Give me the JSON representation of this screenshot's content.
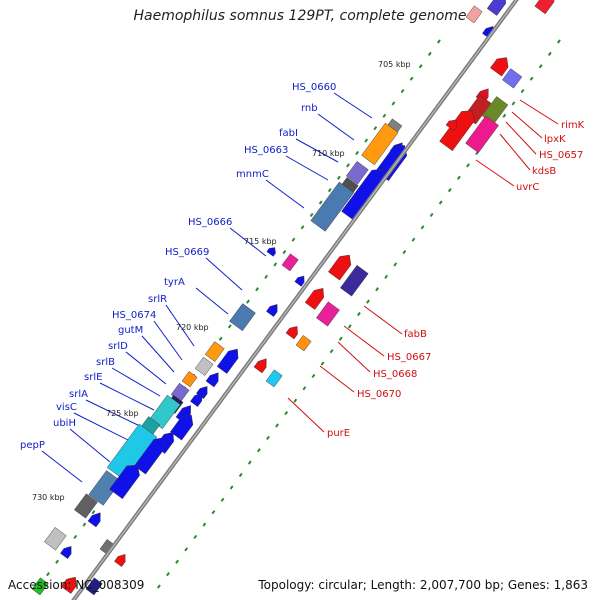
{
  "title": "Haemophilus somnus 129PT, complete genome",
  "footer": {
    "accession": "Accession: NC_008309",
    "topology": "Topology: circular; Length: 2,007,700 bp; Genes: 1,863"
  },
  "kbp_labels": [
    "705 kbp",
    "710 kbp",
    "715 kbp",
    "720 kbp",
    "725 kbp",
    "730 kbp"
  ],
  "left_labels": [
    "HS_0660",
    "rnb",
    "fabI",
    "HS_0663",
    "mnmC",
    "HS_0666",
    "HS_0669",
    "tyrA",
    "srlR",
    "HS_0674",
    "gutM",
    "srlD",
    "srlB",
    "srlE",
    "srlA",
    "visC",
    "ubiH",
    "pepP"
  ],
  "right_labels": [
    "rimK",
    "lpxK",
    "HS_0657",
    "kdsB",
    "uvrC",
    "fabB",
    "HS_0667",
    "HS_0668",
    "HS_0670",
    "purE"
  ],
  "colors": {
    "backbone": "#808080",
    "left_label": "#1020c8",
    "right_label": "#d01010",
    "tick": "#2a8a2a",
    "gene_blue": "#1010e8",
    "gene_red": "#ee1010"
  }
}
